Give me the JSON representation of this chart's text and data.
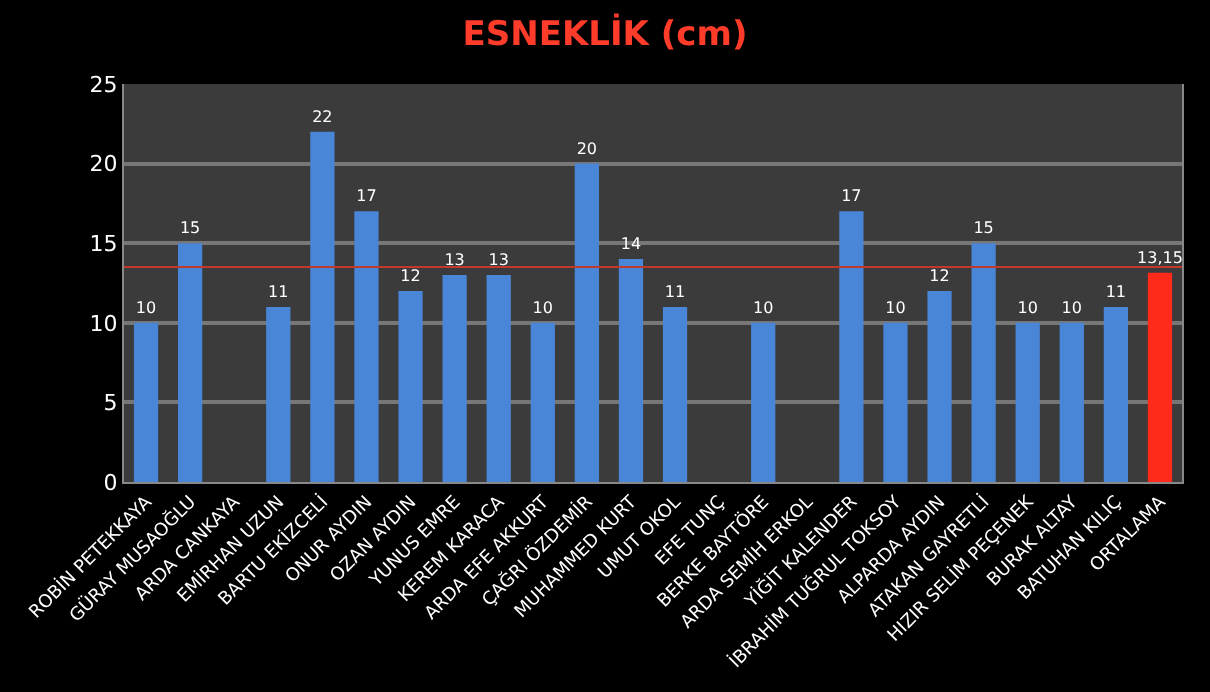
{
  "chart_data": {
    "type": "bar",
    "title": "ESNEKLİK (cm)",
    "categories": [
      "ROBİN PETEKKAYA",
      "GÜRAY MUSAOĞLU",
      "ARDA CANKAYA",
      "EMİRHAN UZUN",
      "BARTU EKİZCELİ",
      "ONUR AYDIN",
      "OZAN AYDIN",
      "YUNUS EMRE",
      "KEREM KARACA",
      "ARDA EFE AKKURT",
      "ÇAĞRI ÖZDEMİR",
      "MUHAMMED KURT",
      "UMUT OKOL",
      "EFE TUNÇ",
      "BERKE BAYTÖRE",
      "ARDA SEMİH ERKOL",
      "YİĞİT KALENDER",
      "İBRAHİM TUĞRUL TOKSOY",
      "ALPARDA AYDIN",
      "ATAKAN GAYRETLİ",
      "HIZIR SELİM PEÇENEK",
      "BURAK ALTAY",
      "BATUHAN KILIÇ",
      "ORTALAMA"
    ],
    "values": [
      10,
      15,
      null,
      11,
      22,
      17,
      12,
      13,
      13,
      10,
      20,
      14,
      11,
      null,
      10,
      null,
      17,
      10,
      12,
      15,
      10,
      10,
      11,
      13.15
    ],
    "value_labels": [
      "10",
      "15",
      null,
      "11",
      "22",
      "17",
      "12",
      "13",
      "13",
      "10",
      "20",
      "14",
      "11",
      null,
      "10",
      null,
      "17",
      "10",
      "12",
      "15",
      "10",
      "10",
      "11",
      "13,15"
    ],
    "colors": [
      "#4a86d8",
      "#4a86d8",
      "#4a86d8",
      "#4a86d8",
      "#4a86d8",
      "#4a86d8",
      "#4a86d8",
      "#4a86d8",
      "#4a86d8",
      "#4a86d8",
      "#4a86d8",
      "#4a86d8",
      "#4a86d8",
      "#4a86d8",
      "#4a86d8",
      "#4a86d8",
      "#4a86d8",
      "#4a86d8",
      "#4a86d8",
      "#4a86d8",
      "#4a86d8",
      "#4a86d8",
      "#4a86d8",
      "#ff2a1a"
    ],
    "ylim": [
      0,
      25
    ],
    "yticks": [
      0,
      5,
      10,
      15,
      20,
      25
    ],
    "grid": "y",
    "ref_lines": [
      {
        "axis": "y",
        "value": 13.5,
        "color": "#c0392b"
      }
    ]
  }
}
